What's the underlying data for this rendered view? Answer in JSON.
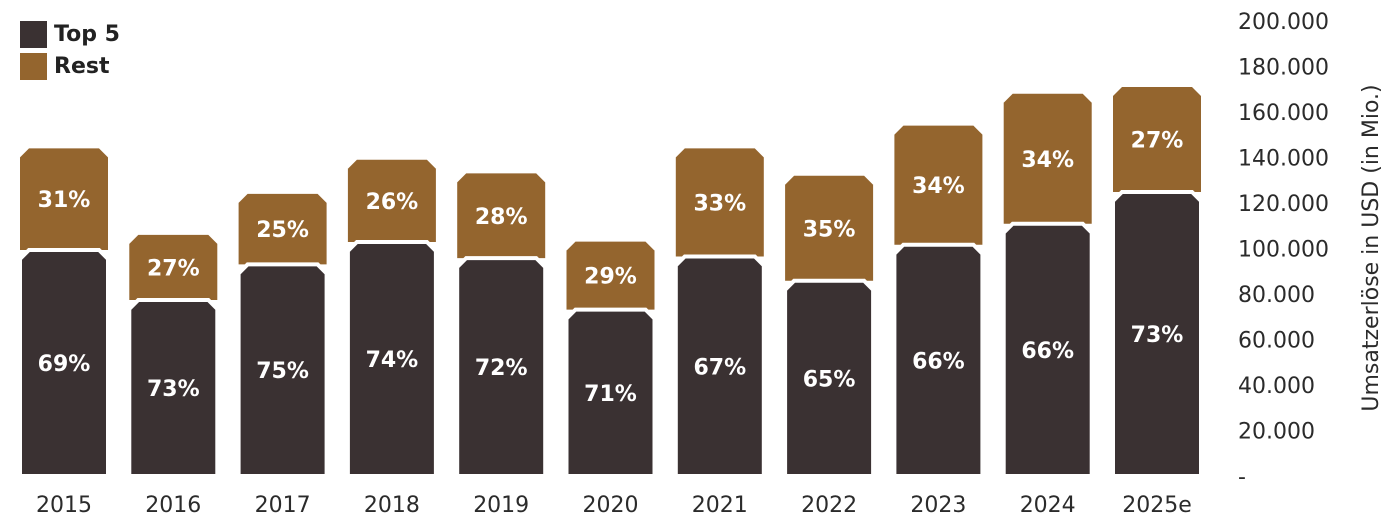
{
  "chart_data": {
    "type": "bar",
    "stacked": true,
    "categories": [
      "2015",
      "2016",
      "2017",
      "2018",
      "2019",
      "2020",
      "2021",
      "2022",
      "2023",
      "2024",
      "2025e"
    ],
    "totals": [
      144000,
      106000,
      124000,
      139000,
      133000,
      103000,
      144000,
      132000,
      154000,
      168000,
      171000
    ],
    "series": [
      {
        "name": "Top 5",
        "color": "#3a3132",
        "percents": [
          69,
          73,
          75,
          74,
          72,
          71,
          67,
          65,
          66,
          66,
          73
        ],
        "labels": [
          "69%",
          "73%",
          "75%",
          "74%",
          "72%",
          "71%",
          "67%",
          "65%",
          "66%",
          "66%",
          "73%"
        ]
      },
      {
        "name": "Rest",
        "color": "#94652e",
        "percents": [
          31,
          27,
          25,
          26,
          28,
          29,
          33,
          35,
          34,
          34,
          27
        ],
        "labels": [
          "31%",
          "27%",
          "25%",
          "26%",
          "28%",
          "29%",
          "33%",
          "35%",
          "34%",
          "34%",
          "27%"
        ]
      }
    ],
    "ylabel": "Umsatzerlöse in USD (in Mio.)",
    "ylim": [
      0,
      200000
    ],
    "yticks": [
      "-",
      "20.000",
      "40.000",
      "60.000",
      "80.000",
      "100.000",
      "120.000",
      "140.000",
      "160.000",
      "180.000",
      "200.000"
    ],
    "y_axis_position": "right",
    "legend_position": "top-left",
    "grid": false
  }
}
